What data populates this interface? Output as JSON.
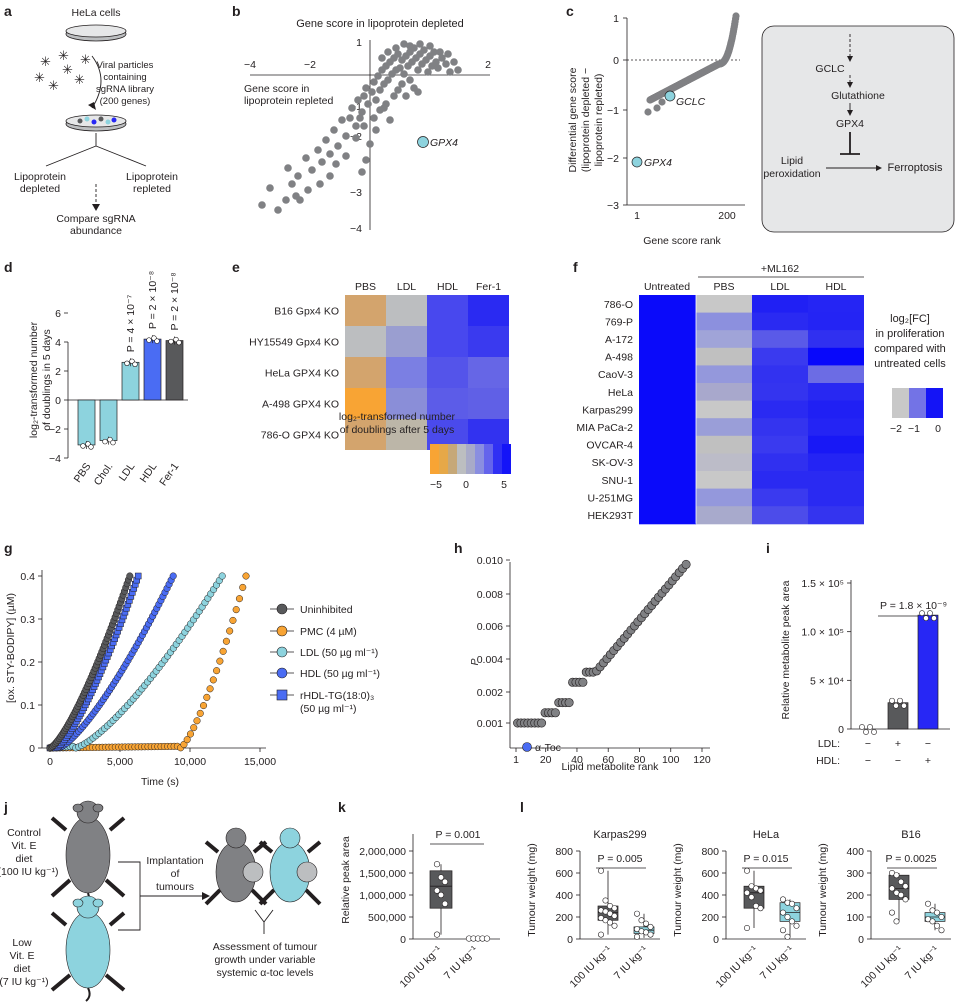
{
  "panels": {
    "a": "a",
    "b": "b",
    "c": "c",
    "d": "d",
    "e": "e",
    "f": "f",
    "g": "g",
    "h": "h",
    "i": "i",
    "j": "j",
    "k": "k",
    "l": "l"
  },
  "colors": {
    "grey": "#808184",
    "dark": "#58595b",
    "lightblue": "#8dd3de",
    "blue": "#4a6cf3",
    "brightblue": "#2727f5",
    "orange": "#f8a434",
    "tan": "#d3a46d",
    "lightgrey": "#bcbec0"
  },
  "panel_a": {
    "hela": "HeLa cells",
    "viral": [
      "Viral particles",
      "containing",
      "sgRNA library",
      "(200 genes)"
    ],
    "depleted": [
      "Lipoprotein",
      "depleted"
    ],
    "repleted": [
      "Lipoprotein",
      "repleted"
    ],
    "compare": [
      "Compare sgRNA",
      "abundance"
    ]
  },
  "panel_b": {
    "ylabel": "Gene score in lipoprotein depleted",
    "xlabel": [
      "Gene score in",
      "lipoprotein repleted"
    ],
    "xticks": [
      "−4",
      "−2",
      "2"
    ],
    "yticks": [
      "1",
      "−1",
      "−2",
      "−3",
      "−4"
    ],
    "gene": "GPX4"
  },
  "panel_c": {
    "ylabel": [
      "Differential gene score",
      "(lipoprotein depleted −",
      "lipoprotein repleted)"
    ],
    "xlabel": "Gene score rank",
    "yticks": [
      "1",
      "0",
      "−1",
      "−2",
      "−3"
    ],
    "xticks": [
      "1",
      "200"
    ],
    "gene1": "GCLC",
    "gene2": "GPX4",
    "pathway": {
      "gclc": "GCLC",
      "glutathione": "Glutathione",
      "gpx4": "GPX4",
      "lipid": [
        "Lipid",
        "peroxidation"
      ],
      "ferroptosis": "Ferroptosis"
    }
  },
  "panel_d": {
    "ylabel": [
      "log₂-transformed number",
      "of doublings in 5 days"
    ],
    "yticks": [
      "6",
      "4",
      "2",
      "0",
      "−2",
      "−4"
    ],
    "categories": [
      "PBS",
      "Chol.",
      "LDL",
      "HDL",
      "Fer-1"
    ],
    "values": [
      -3.1,
      -2.8,
      2.6,
      4.2,
      4.1
    ],
    "pvals": [
      "P = 4 × 10⁻⁷",
      "P = 2 × 10⁻⁸",
      "P = 2 × 10⁻⁸"
    ]
  },
  "panel_e": {
    "cols": [
      "PBS",
      "LDL",
      "HDL",
      "Fer-1"
    ],
    "rows": [
      "B16 Gpx4 KO",
      "HY15549 Gpx4 KO",
      "HeLa GPX4 KO",
      "A-498 GPX4 KO",
      "786-O GPX4 KO"
    ],
    "cells": [
      [
        "#d3a46d",
        "#bcbec0",
        "#4848ee",
        "#2a2af2"
      ],
      [
        "#bcbec0",
        "#9a9ed0",
        "#4848ee",
        "#3a3aef"
      ],
      [
        "#d3a46d",
        "#7b7fe3",
        "#5454ea",
        "#6666e6"
      ],
      [
        "#f8a434",
        "#8a8ed8",
        "#5c5ce8",
        "#6060e6"
      ],
      [
        "#d3a46d",
        "#bcb6a8",
        "#4a4aec",
        "#3232f0"
      ]
    ],
    "legend": [
      "log₂-transformed number",
      "of doublings after 5 days"
    ],
    "ticks": [
      "−5",
      "0",
      "5"
    ]
  },
  "panel_f": {
    "header": "+ML162",
    "cols": [
      "Untreated",
      "PBS",
      "LDL",
      "HDL"
    ],
    "rows": [
      "786-O",
      "769-P",
      "A-172",
      "A-498",
      "CaoV-3",
      "HeLa",
      "Karpas299",
      "MIA PaCa-2",
      "OVCAR-4",
      "SK-OV-3",
      "SNU-1",
      "U-251MG",
      "HEK293T"
    ],
    "pbs": [
      "#c8c8c8",
      "#8c90de",
      "#a0a4d8",
      "#c0c0c0",
      "#9498dc",
      "#a8a8cc",
      "#c8c8c8",
      "#9a9ed8",
      "#c0c0c0",
      "#bcbcc8",
      "#c8c8c8",
      "#9498dc",
      "#a8aacc"
    ],
    "ldl": [
      "#2020f4",
      "#2a2af2",
      "#5a5ae8",
      "#3a3aef",
      "#3232f0",
      "#3434ef",
      "#2a2af2",
      "#3434ef",
      "#3a3aef",
      "#3030f0",
      "#2a2af2",
      "#3a3aef",
      "#4c4cea"
    ],
    "hdl": [
      "#2525f4",
      "#2424f4",
      "#3030f0",
      "#0808fb",
      "#6c6ce4",
      "#2828f2",
      "#2020f4",
      "#2424f4",
      "#1818f6",
      "#2424f4",
      "#2a2af2",
      "#2a2af2",
      "#3434ef"
    ],
    "legend": [
      "log₂[FC]",
      "in proliferation",
      "compared with",
      "untreated cells"
    ],
    "ticks": [
      "−2",
      "−1",
      "0"
    ]
  },
  "panel_g": {
    "ylabel": "[ox. STY-BODIPY] (µM)",
    "xlabel": "Time (s)",
    "yticks": [
      "0.4",
      "0.3",
      "0.2",
      "0.1",
      "0"
    ],
    "xticks": [
      "0",
      "5,000",
      "10,000",
      "15,000"
    ],
    "legend": [
      "Uninhibited",
      "PMC (4 µM)",
      "LDL (50 µg ml⁻¹)",
      "HDL (50 µg ml⁻¹)",
      "rHDL-TG(18:0)₃",
      "(50 µg ml⁻¹)"
    ]
  },
  "panel_h": {
    "ylabel": "P",
    "xlabel": "Lipid metabolite rank",
    "yticks": [
      "0.010",
      "0.008",
      "0.006",
      "0.004",
      "0.002",
      "0.001"
    ],
    "xticks": [
      "1",
      "20",
      "40",
      "60",
      "80",
      "100",
      "120"
    ],
    "label": "α-Toc"
  },
  "panel_i": {
    "ylabel": "Relative metabolite peak area",
    "yticks": [
      "1.5 × 10⁵",
      "1.0 × 10⁵",
      "5 × 10⁴",
      "0"
    ],
    "pval": "P = 1.8 × 10⁻⁹",
    "ldl_label": "LDL:",
    "hdl_label": "HDL:",
    "ldl": [
      "−",
      "+",
      "−"
    ],
    "hdl": [
      "−",
      "−",
      "+"
    ],
    "values": [
      0,
      27000,
      117000
    ]
  },
  "panel_j": {
    "control": [
      "Control",
      "Vit. E",
      "diet",
      "(100 IU kg⁻¹)"
    ],
    "low": [
      "Low",
      "Vit. E",
      "diet",
      "(7 IU kg⁻¹)"
    ],
    "implant": [
      "Implantation",
      "of",
      "tumours"
    ],
    "assess": [
      "Assessment of tumour",
      "growth under variable",
      "systemic α-toc levels"
    ]
  },
  "panel_k": {
    "ylabel": "Relative peak area",
    "yticks": [
      "2,000,000",
      "1,500,000",
      "1,000,000",
      "500,000",
      "0"
    ],
    "pval": "P = 0.001",
    "xlabels": [
      "100 IU kg⁻¹",
      "7 IU kg⁻¹"
    ]
  },
  "panel_l": {
    "ylabel": "Tumour weight (mg)",
    "xlabels": [
      "100 IU kg⁻¹",
      "7 IU kg⁻¹"
    ],
    "plots": [
      {
        "title": "Karpas299",
        "pval": "P = 0.005",
        "yticks": [
          "800",
          "600",
          "400",
          "200",
          "0"
        ]
      },
      {
        "title": "HeLa",
        "pval": "P = 0.015",
        "yticks": [
          "800",
          "600",
          "400",
          "200",
          "0"
        ]
      },
      {
        "title": "B16",
        "pval": "P = 0.0025",
        "yticks": [
          "400",
          "300",
          "200",
          "100",
          "0"
        ]
      }
    ]
  },
  "chart_data": [
    {
      "type": "bar",
      "title": "d",
      "categories": [
        "PBS",
        "Chol.",
        "LDL",
        "HDL",
        "Fer-1"
      ],
      "values": [
        -3.1,
        -2.8,
        2.6,
        4.2,
        4.1
      ],
      "ylabel": "log2-transformed number of doublings in 5 days",
      "ylim": [
        -4,
        6
      ]
    },
    {
      "type": "bar",
      "title": "i",
      "categories": [
        "LDL− HDL−",
        "LDL+ HDL−",
        "LDL− HDL+"
      ],
      "values": [
        0,
        27000,
        117000
      ],
      "ylabel": "Relative metabolite peak area",
      "ylim": [
        0,
        150000
      ]
    },
    {
      "type": "scatter",
      "title": "h",
      "xlabel": "Lipid metabolite rank",
      "ylabel": "P",
      "xlim": [
        1,
        120
      ],
      "ylim": [
        0.001,
        0.01
      ]
    },
    {
      "type": "line",
      "title": "g",
      "xlabel": "Time (s)",
      "ylabel": "[ox. STY-BODIPY] (µM)",
      "xlim": [
        0,
        15000
      ],
      "ylim": [
        0,
        0.4
      ],
      "series": [
        {
          "name": "Uninhibited"
        },
        {
          "name": "PMC (4 µM)"
        },
        {
          "name": "LDL (50 µg ml−1)"
        },
        {
          "name": "HDL (50 µg ml−1)"
        },
        {
          "name": "rHDL-TG(18:0)3 (50 µg ml−1)"
        }
      ]
    }
  ]
}
